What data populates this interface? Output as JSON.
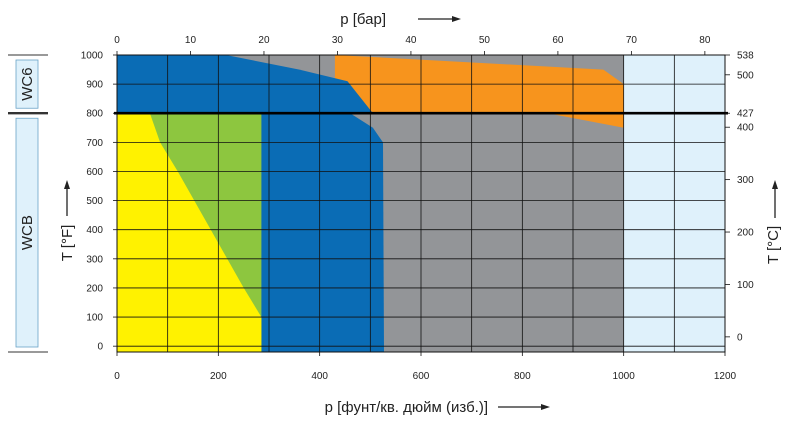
{
  "chart_data": {
    "type": "area",
    "title": "",
    "x_bottom": {
      "label": "p [фунт/кв. дюйм (изб.)]",
      "range": [
        0,
        1200
      ],
      "ticks": [
        0,
        200,
        400,
        600,
        800,
        1000,
        1200
      ]
    },
    "x_top": {
      "label": "p [бар]",
      "range": [
        0,
        82.74
      ],
      "ticks": [
        0,
        10,
        20,
        30,
        40,
        50,
        60,
        70,
        80
      ]
    },
    "y_left": {
      "label": "T [°F]",
      "range": [
        -20,
        1000
      ],
      "ticks": [
        0,
        100,
        200,
        300,
        400,
        500,
        600,
        700,
        800,
        900,
        1000
      ]
    },
    "y_right": {
      "label": "T [°C]",
      "ticks": [
        {
          "label": "538",
          "f": 1000
        },
        {
          "label": "500",
          "f": 932
        },
        {
          "label": "427",
          "f": 800
        },
        {
          "label": "400",
          "f": 752
        },
        {
          "label": "300",
          "f": 572
        },
        {
          "label": "200",
          "f": 392
        },
        {
          "label": "100",
          "f": 212
        },
        {
          "label": "0",
          "f": 32
        }
      ]
    },
    "materials": [
      {
        "name": "WCB",
        "t_range_f": [
          -20,
          800
        ]
      },
      {
        "name": "WC6",
        "t_range_f": [
          800,
          1000
        ]
      }
    ],
    "divider_f": 800,
    "grid": true,
    "regions": [
      {
        "color": "#dff1fb",
        "points": [
          [
            0,
            -20
          ],
          [
            1200,
            -20
          ],
          [
            1200,
            1000
          ],
          [
            0,
            1000
          ]
        ]
      },
      {
        "color": "#939598",
        "points": [
          [
            0,
            -20
          ],
          [
            1000,
            -20
          ],
          [
            1000,
            800
          ],
          [
            0,
            800
          ]
        ]
      },
      {
        "color": "#939598",
        "points": [
          [
            0,
            800
          ],
          [
            1000,
            800
          ],
          [
            1000,
            1000
          ],
          [
            0,
            1000
          ]
        ]
      },
      {
        "color": "#f7941d",
        "points": [
          [
            430,
            1000
          ],
          [
            960,
            950
          ],
          [
            1000,
            900
          ],
          [
            1000,
            750
          ],
          [
            850,
            800
          ],
          [
            430,
            800
          ]
        ]
      },
      {
        "color": "#0a6cb5",
        "points": [
          [
            0,
            800
          ],
          [
            460,
            800
          ],
          [
            505,
            750
          ],
          [
            525,
            700
          ],
          [
            527,
            -20
          ],
          [
            0,
            -20
          ]
        ]
      },
      {
        "color": "#0a6cb5",
        "points": [
          [
            0,
            800
          ],
          [
            505,
            800
          ],
          [
            455,
            910
          ],
          [
            360,
            950
          ],
          [
            215,
            1000
          ],
          [
            0,
            1000
          ]
        ]
      },
      {
        "color": "#8dc63f",
        "points": [
          [
            0,
            -20
          ],
          [
            285,
            -20
          ],
          [
            285,
            800
          ],
          [
            0,
            800
          ]
        ]
      },
      {
        "color": "#fff200",
        "points": [
          [
            0,
            -20
          ],
          [
            285,
            -20
          ],
          [
            285,
            100
          ],
          [
            250,
            200
          ],
          [
            120,
            600
          ],
          [
            85,
            700
          ],
          [
            65,
            800
          ],
          [
            0,
            800
          ]
        ]
      }
    ]
  }
}
